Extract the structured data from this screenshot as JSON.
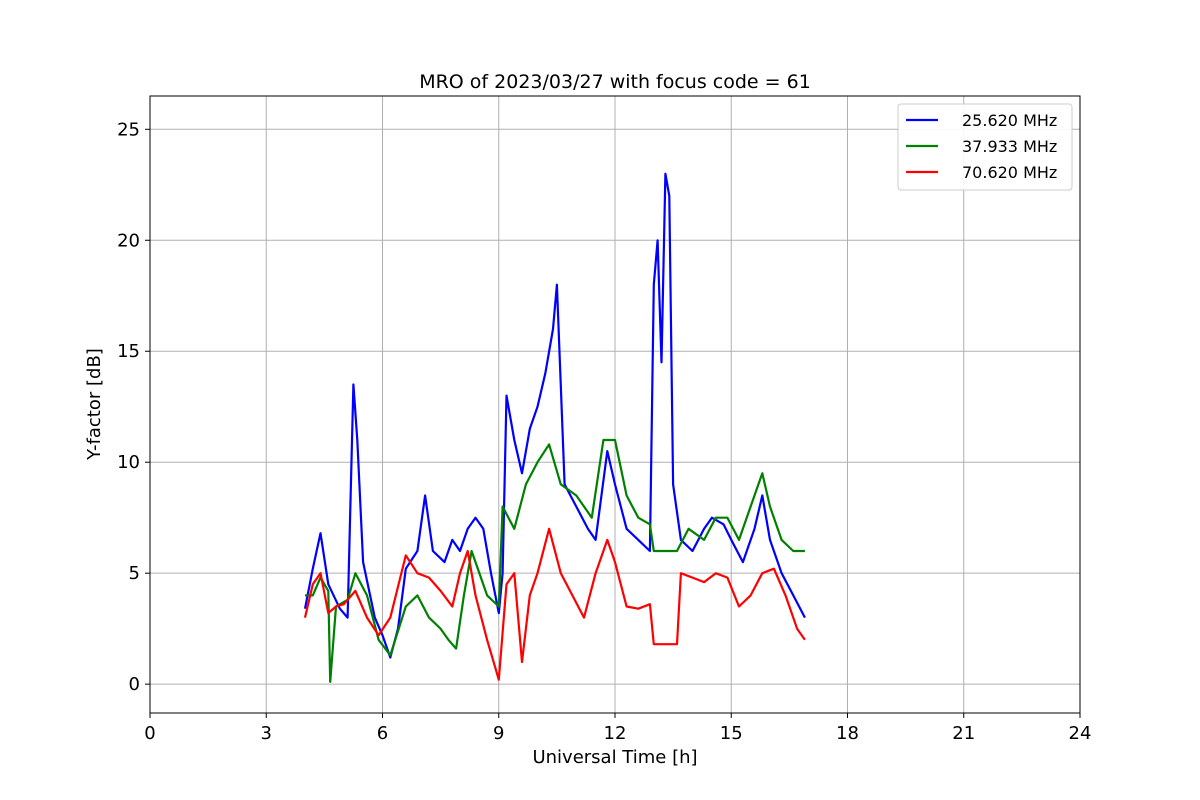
{
  "chart_data": {
    "type": "line",
    "title": "MRO of 2023/03/27 with focus code = 61",
    "xlabel": "Universal Time [h]",
    "ylabel": "Y-factor [dB]",
    "xlim": [
      0,
      24
    ],
    "ylim": [
      -1.3,
      26.5
    ],
    "xticks": [
      0,
      3,
      6,
      9,
      12,
      15,
      18,
      21,
      24
    ],
    "yticks": [
      0,
      5,
      10,
      15,
      20,
      25
    ],
    "grid": true,
    "legend_position": "top-right",
    "series": [
      {
        "name": "25.620 MHz",
        "color": "#0000ff",
        "points": [
          [
            4.0,
            3.4
          ],
          [
            4.2,
            5.2
          ],
          [
            4.4,
            6.8
          ],
          [
            4.6,
            4.5
          ],
          [
            4.9,
            3.4
          ],
          [
            5.1,
            3.0
          ],
          [
            5.25,
            13.5
          ],
          [
            5.35,
            11.0
          ],
          [
            5.5,
            5.5
          ],
          [
            5.8,
            3.0
          ],
          [
            6.0,
            2.2
          ],
          [
            6.2,
            1.2
          ],
          [
            6.4,
            2.5
          ],
          [
            6.6,
            5.2
          ],
          [
            6.9,
            6.0
          ],
          [
            7.1,
            8.5
          ],
          [
            7.3,
            6.0
          ],
          [
            7.6,
            5.5
          ],
          [
            7.8,
            6.5
          ],
          [
            8.0,
            6.0
          ],
          [
            8.2,
            7.0
          ],
          [
            8.4,
            7.5
          ],
          [
            8.6,
            7.0
          ],
          [
            8.8,
            5.0
          ],
          [
            9.0,
            3.2
          ],
          [
            9.1,
            5.0
          ],
          [
            9.2,
            13.0
          ],
          [
            9.4,
            11.0
          ],
          [
            9.6,
            9.5
          ],
          [
            9.8,
            11.5
          ],
          [
            10.0,
            12.5
          ],
          [
            10.2,
            14.0
          ],
          [
            10.4,
            16.0
          ],
          [
            10.5,
            18.0
          ],
          [
            10.7,
            9.0
          ],
          [
            11.0,
            8.0
          ],
          [
            11.3,
            7.0
          ],
          [
            11.5,
            6.5
          ],
          [
            11.8,
            10.5
          ],
          [
            12.0,
            9.0
          ],
          [
            12.3,
            7.0
          ],
          [
            12.6,
            6.5
          ],
          [
            12.9,
            6.0
          ],
          [
            13.0,
            18.0
          ],
          [
            13.1,
            20.0
          ],
          [
            13.2,
            14.5
          ],
          [
            13.3,
            23.0
          ],
          [
            13.4,
            22.0
          ],
          [
            13.5,
            9.0
          ],
          [
            13.7,
            6.5
          ],
          [
            14.0,
            6.0
          ],
          [
            14.3,
            7.0
          ],
          [
            14.5,
            7.5
          ],
          [
            14.8,
            7.2
          ],
          [
            15.0,
            6.5
          ],
          [
            15.3,
            5.5
          ],
          [
            15.6,
            7.0
          ],
          [
            15.8,
            8.5
          ],
          [
            16.0,
            6.5
          ],
          [
            16.3,
            5.0
          ],
          [
            16.6,
            4.0
          ],
          [
            16.9,
            3.0
          ]
        ]
      },
      {
        "name": "37.933 MHz",
        "color": "#008000",
        "points": [
          [
            4.0,
            4.0
          ],
          [
            4.2,
            4.0
          ],
          [
            4.4,
            4.8
          ],
          [
            4.6,
            4.2
          ],
          [
            4.65,
            0.1
          ],
          [
            4.8,
            3.5
          ],
          [
            5.1,
            3.8
          ],
          [
            5.3,
            5.0
          ],
          [
            5.6,
            4.0
          ],
          [
            5.9,
            2.0
          ],
          [
            6.2,
            1.3
          ],
          [
            6.6,
            3.5
          ],
          [
            6.9,
            4.0
          ],
          [
            7.2,
            3.0
          ],
          [
            7.5,
            2.5
          ],
          [
            7.7,
            2.0
          ],
          [
            7.9,
            1.6
          ],
          [
            8.1,
            4.0
          ],
          [
            8.3,
            6.0
          ],
          [
            8.5,
            5.0
          ],
          [
            8.7,
            4.0
          ],
          [
            9.0,
            3.5
          ],
          [
            9.1,
            8.0
          ],
          [
            9.4,
            7.0
          ],
          [
            9.7,
            9.0
          ],
          [
            10.0,
            10.0
          ],
          [
            10.3,
            10.8
          ],
          [
            10.6,
            9.0
          ],
          [
            11.0,
            8.5
          ],
          [
            11.4,
            7.5
          ],
          [
            11.7,
            11.0
          ],
          [
            12.0,
            11.0
          ],
          [
            12.3,
            8.5
          ],
          [
            12.6,
            7.5
          ],
          [
            12.9,
            7.2
          ],
          [
            13.0,
            6.0
          ],
          [
            13.3,
            6.0
          ],
          [
            13.6,
            6.0
          ],
          [
            13.9,
            7.0
          ],
          [
            14.3,
            6.5
          ],
          [
            14.6,
            7.5
          ],
          [
            14.9,
            7.5
          ],
          [
            15.2,
            6.5
          ],
          [
            15.5,
            8.0
          ],
          [
            15.8,
            9.5
          ],
          [
            16.0,
            8.0
          ],
          [
            16.3,
            6.5
          ],
          [
            16.6,
            6.0
          ],
          [
            16.9,
            6.0
          ]
        ]
      },
      {
        "name": "70.620 MHz",
        "color": "#ff0000",
        "points": [
          [
            4.0,
            3.0
          ],
          [
            4.2,
            4.5
          ],
          [
            4.4,
            5.0
          ],
          [
            4.6,
            3.2
          ],
          [
            4.8,
            3.5
          ],
          [
            5.0,
            3.6
          ],
          [
            5.3,
            4.2
          ],
          [
            5.6,
            3.0
          ],
          [
            5.9,
            2.2
          ],
          [
            6.2,
            3.0
          ],
          [
            6.6,
            5.8
          ],
          [
            6.9,
            5.0
          ],
          [
            7.2,
            4.8
          ],
          [
            7.5,
            4.2
          ],
          [
            7.8,
            3.5
          ],
          [
            8.0,
            5.0
          ],
          [
            8.2,
            6.0
          ],
          [
            8.4,
            4.0
          ],
          [
            8.7,
            2.0
          ],
          [
            9.0,
            0.2
          ],
          [
            9.2,
            4.5
          ],
          [
            9.4,
            5.0
          ],
          [
            9.6,
            1.0
          ],
          [
            9.8,
            4.0
          ],
          [
            10.0,
            5.0
          ],
          [
            10.3,
            7.0
          ],
          [
            10.6,
            5.0
          ],
          [
            10.9,
            4.0
          ],
          [
            11.2,
            3.0
          ],
          [
            11.5,
            5.0
          ],
          [
            11.8,
            6.5
          ],
          [
            12.0,
            5.5
          ],
          [
            12.3,
            3.5
          ],
          [
            12.6,
            3.4
          ],
          [
            12.9,
            3.6
          ],
          [
            13.0,
            1.8
          ],
          [
            13.3,
            1.8
          ],
          [
            13.6,
            1.8
          ],
          [
            13.7,
            5.0
          ],
          [
            14.0,
            4.8
          ],
          [
            14.3,
            4.6
          ],
          [
            14.6,
            5.0
          ],
          [
            14.9,
            4.8
          ],
          [
            15.2,
            3.5
          ],
          [
            15.5,
            4.0
          ],
          [
            15.8,
            5.0
          ],
          [
            16.1,
            5.2
          ],
          [
            16.4,
            4.0
          ],
          [
            16.7,
            2.5
          ],
          [
            16.9,
            2.0
          ]
        ]
      }
    ]
  }
}
